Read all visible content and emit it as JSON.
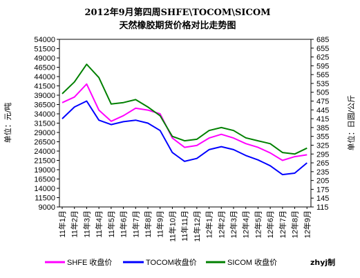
{
  "chart_data": {
    "type": "line",
    "title_line1": "2012年9月第四周SHFE\\TOCOM\\SICOM",
    "title_line2": "天然橡胶期货价格对比走势图",
    "ylabel_left": "单位：元/吨",
    "ylabel_right": "单位：日圆/公斤",
    "ylim_left": [
      9000,
      54000
    ],
    "ylim_right": [
      115,
      685
    ],
    "left_ticks": [
      9000,
      11500,
      14000,
      16500,
      19000,
      21500,
      24000,
      26500,
      29000,
      31500,
      34000,
      36500,
      39000,
      41500,
      44000,
      46500,
      49000,
      51500,
      54000
    ],
    "right_ticks": [
      115,
      145,
      175,
      205,
      235,
      265,
      295,
      325,
      355,
      385,
      415,
      445,
      475,
      505,
      535,
      565,
      595,
      625,
      655,
      685
    ],
    "categories": [
      "11年1月",
      "11年2月",
      "11年3月",
      "11年4月",
      "11年5月",
      "11年6月",
      "11年7月",
      "11年8月",
      "11年9月",
      "11年10月",
      "11年11月",
      "11年12月",
      "12年1月",
      "12年2月",
      "12年3月",
      "12年4月",
      "12年5月",
      "12年6月",
      "12年7月",
      "12年8月",
      "12年9月"
    ],
    "grid": false,
    "legend_position": "bottom",
    "series": [
      {
        "name": "SHFE 收盘价",
        "axis": "left",
        "color": "#ff00ff",
        "values": [
          37000,
          38500,
          42000,
          35000,
          32000,
          33500,
          35500,
          35000,
          34000,
          27500,
          25000,
          25500,
          27500,
          28500,
          27500,
          26000,
          25000,
          23500,
          21500,
          22500,
          23000
        ]
      },
      {
        "name": "TOCOM收盘价",
        "axis": "right",
        "color": "#0000ff",
        "values": [
          415,
          455,
          475,
          410,
          395,
          405,
          410,
          400,
          375,
          300,
          270,
          280,
          310,
          320,
          310,
          290,
          275,
          255,
          225,
          230,
          265
        ]
      },
      {
        "name": "SICOM 收盘价",
        "axis": "right",
        "color": "#008000",
        "values": [
          500,
          540,
          600,
          555,
          465,
          470,
          480,
          455,
          425,
          355,
          340,
          345,
          375,
          385,
          375,
          350,
          340,
          330,
          300,
          295,
          315
        ]
      }
    ]
  },
  "watermark": "zhyj制"
}
